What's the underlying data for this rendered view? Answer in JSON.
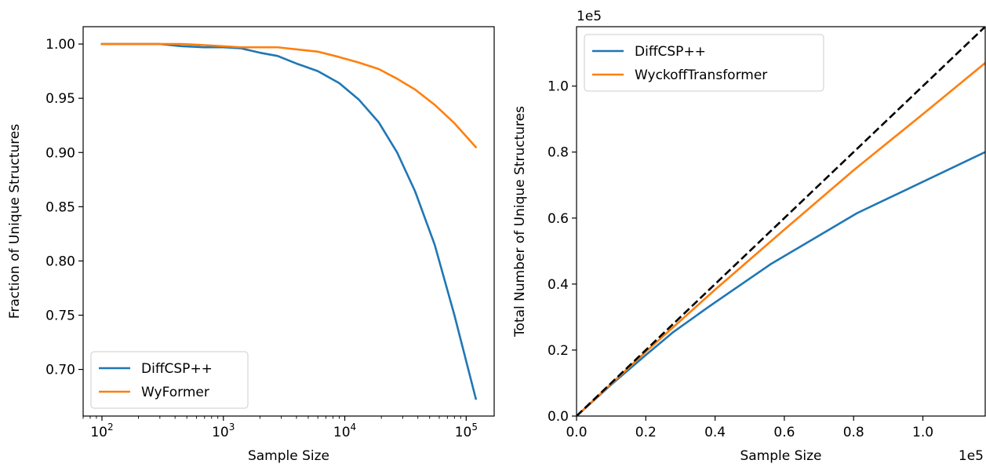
{
  "chart_data": [
    {
      "type": "line",
      "xlabel": "Sample Size",
      "ylabel": "Fraction of Unique Structures",
      "xscale": "log",
      "xlim": [
        70,
        170000
      ],
      "ylim": [
        0.657,
        1.016
      ],
      "x_ticks": [
        100,
        1000,
        10000,
        100000
      ],
      "x_tick_labels": [
        {
          "base": "10",
          "exp": "2"
        },
        {
          "base": "10",
          "exp": "3"
        },
        {
          "base": "10",
          "exp": "4"
        },
        {
          "base": "10",
          "exp": "5"
        }
      ],
      "y_ticks": [
        0.7,
        0.75,
        0.8,
        0.85,
        0.9,
        0.95,
        1.0
      ],
      "y_tick_labels": [
        "0.70",
        "0.75",
        "0.80",
        "0.85",
        "0.90",
        "0.95",
        "1.00"
      ],
      "legend_position": "lower-left",
      "series": [
        {
          "name": "DiffCSP++",
          "color": "#1f77b4",
          "x": [
            100,
            300,
            450,
            700,
            1000,
            1400,
            2000,
            2800,
            4000,
            6000,
            9000,
            13000,
            19000,
            27000,
            38000,
            55000,
            80000,
            120000
          ],
          "y": [
            1.0,
            1.0,
            0.998,
            0.997,
            0.997,
            0.996,
            0.992,
            0.989,
            0.982,
            0.975,
            0.964,
            0.949,
            0.928,
            0.9,
            0.864,
            0.815,
            0.75,
            0.673
          ]
        },
        {
          "name": "WyFormer",
          "color": "#ff7f0e",
          "x": [
            100,
            450,
            700,
            1000,
            1400,
            2000,
            2800,
            6000,
            9000,
            13000,
            19000,
            27000,
            38000,
            55000,
            80000,
            120000
          ],
          "y": [
            1.0,
            1.0,
            0.999,
            0.998,
            0.997,
            0.997,
            0.997,
            0.993,
            0.988,
            0.983,
            0.977,
            0.968,
            0.958,
            0.944,
            0.927,
            0.905
          ]
        }
      ]
    },
    {
      "type": "line",
      "xlabel": "Sample Size",
      "ylabel": "Total Number of Unique Structures",
      "x_offset_label": "1e5",
      "y_offset_label": "1e5",
      "xlim": [
        0,
        1.18
      ],
      "ylim": [
        0,
        1.18
      ],
      "x_ticks": [
        0.0,
        0.2,
        0.4,
        0.6,
        0.8,
        1.0
      ],
      "x_tick_labels": [
        "0.0",
        "0.2",
        "0.4",
        "0.6",
        "0.8",
        "1.0"
      ],
      "y_ticks": [
        0.0,
        0.2,
        0.4,
        0.6,
        0.8,
        1.0
      ],
      "y_tick_labels": [
        "0.0",
        "0.2",
        "0.4",
        "0.6",
        "0.8",
        "1.0"
      ],
      "legend_position": "top-left",
      "series": [
        {
          "name": "DiffCSP++",
          "color": "#1f77b4",
          "x": [
            0,
            0.1,
            0.2,
            0.28,
            0.38,
            0.56,
            0.81,
            1.18
          ],
          "y": [
            0,
            0.095,
            0.185,
            0.255,
            0.33,
            0.46,
            0.615,
            0.8
          ]
        },
        {
          "name": "WyckoffTransformer",
          "color": "#ff7f0e",
          "x": [
            0,
            0.2,
            0.4,
            0.6,
            0.8,
            1.0,
            1.18
          ],
          "y": [
            0,
            0.195,
            0.383,
            0.565,
            0.745,
            0.915,
            1.07
          ]
        },
        {
          "name": "",
          "color": "#000000",
          "dashed": true,
          "x": [
            0,
            1.18
          ],
          "y": [
            0,
            1.18
          ]
        }
      ]
    }
  ]
}
